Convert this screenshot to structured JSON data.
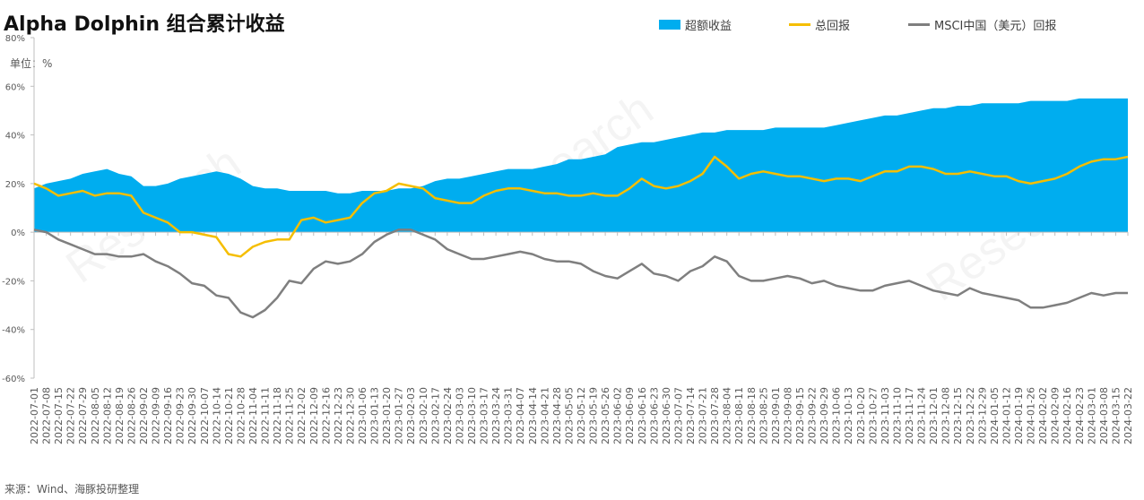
{
  "title": "Alpha Dolphin 组合累计收益",
  "unit_label": "单位：%",
  "source": "来源：Wind、海豚投研整理",
  "watermark": "Research",
  "colors": {
    "excess": "#00ADEF",
    "total": "#F5BE00",
    "msci": "#7F7F7F",
    "axis": "#BFBFBF",
    "text": "#595959"
  },
  "legend": [
    {
      "name": "超额收益",
      "kind": "area",
      "color": "#00ADEF"
    },
    {
      "name": "总回报",
      "kind": "line",
      "color": "#F5BE00"
    },
    {
      "name": "MSCI中国（美元）回报",
      "kind": "line",
      "color": "#7F7F7F"
    }
  ],
  "chart_data": {
    "type": "area",
    "ylim": [
      -60,
      80
    ],
    "ytick_labels": [
      "80%",
      "60%",
      "40%",
      "20%",
      "0%",
      "-20%",
      "-40%",
      "-60%"
    ],
    "grid": false,
    "legend_position": "top-right",
    "x": [
      "2022-07-01",
      "2022-07-08",
      "2022-07-15",
      "2022-07-22",
      "2022-07-29",
      "2022-08-05",
      "2022-08-12",
      "2022-08-19",
      "2022-08-26",
      "2022-09-02",
      "2022-09-09",
      "2022-09-16",
      "2022-09-23",
      "2022-09-30",
      "2022-10-07",
      "2022-10-14",
      "2022-10-21",
      "2022-10-28",
      "2022-11-04",
      "2022-11-11",
      "2022-11-18",
      "2022-11-25",
      "2022-12-02",
      "2022-12-09",
      "2022-12-16",
      "2022-12-23",
      "2022-12-30",
      "2023-01-06",
      "2023-01-13",
      "2023-01-20",
      "2023-01-27",
      "2023-02-03",
      "2023-02-10",
      "2023-02-17",
      "2023-02-24",
      "2023-03-03",
      "2023-03-10",
      "2023-03-17",
      "2023-03-24",
      "2023-03-31",
      "2023-04-07",
      "2023-04-14",
      "2023-04-21",
      "2023-04-28",
      "2023-05-05",
      "2023-05-12",
      "2023-05-19",
      "2023-05-26",
      "2023-06-02",
      "2023-06-09",
      "2023-06-16",
      "2023-06-23",
      "2023-06-30",
      "2023-07-07",
      "2023-07-14",
      "2023-07-21",
      "2023-07-28",
      "2023-08-04",
      "2023-08-11",
      "2023-08-18",
      "2023-08-25",
      "2023-09-01",
      "2023-09-08",
      "2023-09-15",
      "2023-09-22",
      "2023-09-29",
      "2023-10-06",
      "2023-10-13",
      "2023-10-20",
      "2023-10-27",
      "2023-11-03",
      "2023-11-10",
      "2023-11-17",
      "2023-11-24",
      "2023-12-01",
      "2023-12-08",
      "2023-12-15",
      "2023-12-22",
      "2023-12-29",
      "2024-01-05",
      "2024-01-12",
      "2024-01-19",
      "2024-01-26",
      "2024-02-02",
      "2024-02-09",
      "2024-02-16",
      "2024-02-23",
      "2024-03-01",
      "2024-03-08",
      "2024-03-15",
      "2024-03-22"
    ],
    "x_tick_labels": [
      "2022-07-01",
      "2022-07-08",
      "2022-07-15",
      "2022-07-22",
      "2022-07-29",
      "2022-08-05",
      "2022-08-12",
      "2022-08-19",
      "2022-08-26",
      "2022-09-02",
      "2022-09-09",
      "2022-09-16",
      "2022-09-23",
      "2022-09-30",
      "2022-10-07",
      "2022-10-14",
      "2022-10-21",
      "2022-10-28",
      "2022-11-04",
      "2022-11-11",
      "2022-11-18",
      "2022-11-25",
      "2022-12-02",
      "2022-12-09",
      "2022-12-16",
      "2022-12-23",
      "2022-12-30",
      "2023-01-06",
      "2023-01-13",
      "2023-01-20",
      "2023-01-27",
      "2023-02-03",
      "2023-02-10",
      "2023-02-17",
      "2023-02-24",
      "2023-03-03",
      "2023-03-10",
      "2023-03-17",
      "2023-03-24",
      "2023-03-31",
      "2023-04-07",
      "2023-04-14",
      "2023-04-21",
      "2023-04-28",
      "2023-05-05",
      "2023-05-12",
      "2023-05-19",
      "2023-05-26",
      "2023-06-02",
      "2023-06-09",
      "2023-06-16",
      "2023-06-23",
      "2023-06-30",
      "2023-07-07",
      "2023-07-14",
      "2023-07-21",
      "2023-07-28",
      "2023-08-04",
      "2023-08-11",
      "2023-08-18",
      "2023-08-25",
      "2023-09-01",
      "2023-09-08",
      "2023-09-15",
      "2023-09-22",
      "2023-09-29",
      "2023-10-06",
      "2023-10-13",
      "2023-10-20",
      "2023-10-27",
      "2023-11-03",
      "2023-11-10",
      "2023-11-17",
      "2023-11-24",
      "2023-12-01",
      "2023-12-08",
      "2023-12-15",
      "2023-12-22",
      "2023-12-29",
      "2024-01-05",
      "2024-01-12",
      "2024-01-19",
      "2024-01-26",
      "2024-02-02",
      "2024-02-09",
      "2024-02-16",
      "2024-02-23",
      "2024-03-01",
      "2024-03-08",
      "2024-03-15",
      "2024-03-22"
    ],
    "series": [
      {
        "name": "超额收益",
        "kind": "area",
        "values": [
          18,
          20,
          21,
          22,
          24,
          25,
          26,
          24,
          23,
          19,
          19,
          20,
          22,
          23,
          24,
          25,
          24,
          22,
          19,
          18,
          18,
          17,
          17,
          17,
          17,
          16,
          16,
          17,
          17,
          17,
          18,
          18,
          19,
          21,
          22,
          22,
          23,
          24,
          25,
          26,
          26,
          26,
          27,
          28,
          30,
          30,
          31,
          32,
          35,
          36,
          37,
          37,
          38,
          39,
          40,
          41,
          41,
          42,
          42,
          42,
          42,
          43,
          43,
          43,
          43,
          43,
          44,
          45,
          46,
          47,
          48,
          48,
          49,
          50,
          51,
          51,
          52,
          52,
          53,
          53,
          53,
          53,
          54,
          54,
          54,
          54,
          55,
          55,
          55,
          55,
          55
        ]
      },
      {
        "name": "总回报",
        "kind": "line",
        "values": [
          20,
          18,
          15,
          16,
          17,
          15,
          16,
          16,
          15,
          8,
          6,
          4,
          0,
          0,
          -1,
          -2,
          -9,
          -10,
          -6,
          -4,
          -3,
          -3,
          5,
          6,
          4,
          5,
          6,
          12,
          16,
          17,
          20,
          19,
          18,
          14,
          13,
          12,
          12,
          15,
          17,
          18,
          18,
          17,
          16,
          16,
          15,
          15,
          16,
          15,
          15,
          18,
          22,
          19,
          18,
          19,
          21,
          24,
          31,
          27,
          22,
          24,
          25,
          24,
          23,
          23,
          22,
          21,
          22,
          22,
          21,
          23,
          25,
          25,
          27,
          27,
          26,
          24,
          24,
          25,
          24,
          23,
          23,
          21,
          20,
          21,
          22,
          24,
          27,
          29,
          30,
          30,
          31
        ]
      },
      {
        "name": "MSCI中国（美元）回报",
        "kind": "line",
        "values": [
          1,
          0,
          -3,
          -5,
          -7,
          -9,
          -9,
          -10,
          -10,
          -9,
          -12,
          -14,
          -17,
          -21,
          -22,
          -26,
          -27,
          -33,
          -35,
          -32,
          -27,
          -20,
          -21,
          -15,
          -12,
          -13,
          -12,
          -9,
          -4,
          -1,
          1,
          1,
          -1,
          -3,
          -7,
          -9,
          -11,
          -11,
          -10,
          -9,
          -8,
          -9,
          -11,
          -12,
          -12,
          -13,
          -16,
          -18,
          -19,
          -16,
          -13,
          -17,
          -18,
          -20,
          -16,
          -14,
          -10,
          -12,
          -18,
          -20,
          -20,
          -19,
          -18,
          -19,
          -21,
          -20,
          -22,
          -23,
          -24,
          -24,
          -22,
          -21,
          -20,
          -22,
          -24,
          -25,
          -26,
          -23,
          -25,
          -26,
          -27,
          -28,
          -31,
          -31,
          -30,
          -29,
          -27,
          -25,
          -26,
          -25,
          -25
        ]
      }
    ]
  }
}
